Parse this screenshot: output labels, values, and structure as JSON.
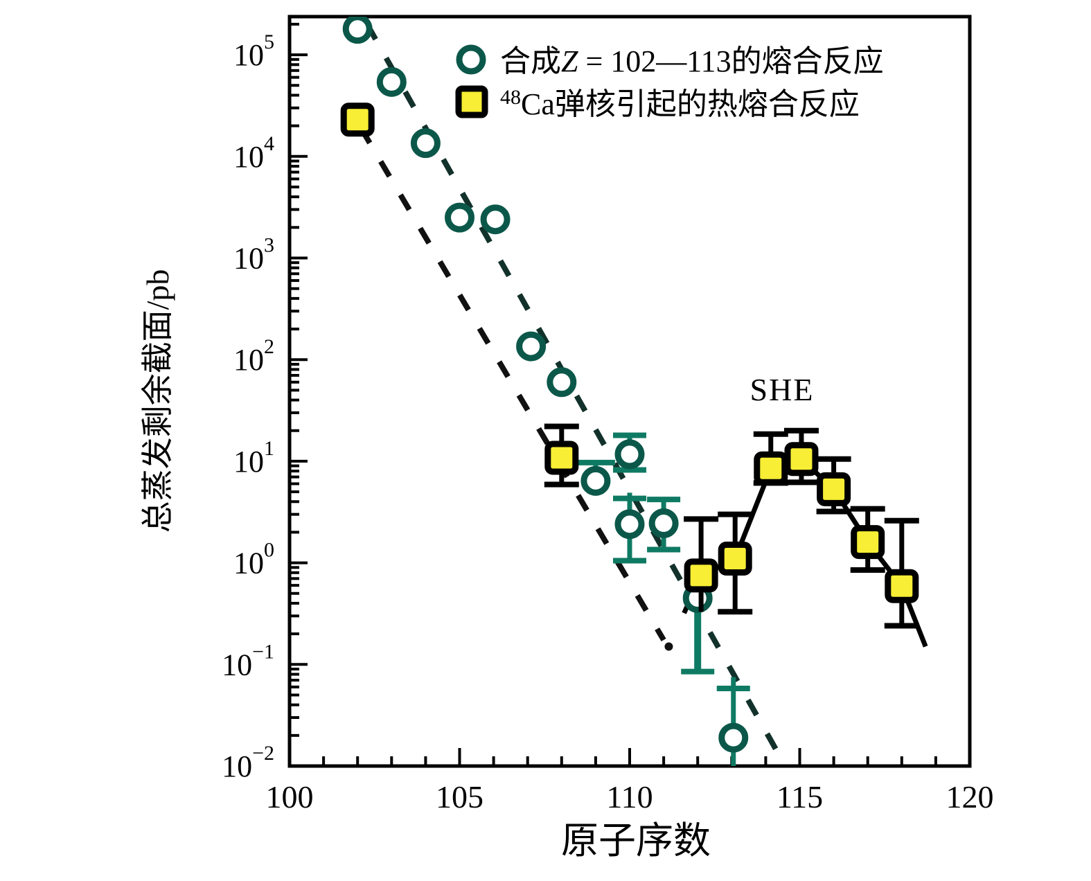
{
  "chart_data": {
    "type": "scatter",
    "xlabel": "原子序数",
    "ylabel": "总蒸发剩余截面/pb",
    "annotations": {
      "she": "SHE"
    },
    "x_axis": {
      "min": 100,
      "max": 120,
      "major_ticks": [
        100,
        105,
        110,
        115,
        120
      ],
      "tick_labels": [
        "100",
        "105",
        "110",
        "115",
        "120"
      ],
      "minor_step": 1
    },
    "y_axis": {
      "scale": "log",
      "min_exp": -2,
      "max_exp": 5.37,
      "tick_labels": [
        {
          "base": "10",
          "exp": "5"
        },
        {
          "base": "10",
          "exp": "4"
        },
        {
          "base": "10",
          "exp": "3"
        },
        {
          "base": "10",
          "exp": "2"
        },
        {
          "base": "10",
          "exp": "1"
        },
        {
          "base": "10",
          "exp": "0"
        },
        {
          "base": "10",
          "exp": "−1"
        },
        {
          "base": "10",
          "exp": "−2"
        }
      ]
    },
    "legend": [
      {
        "marker": "circle",
        "parts": [
          {
            "t": "合成"
          },
          {
            "t": "Z",
            "i": true
          },
          {
            "t": " = 102—113的熔合反应"
          }
        ],
        "label": "合成Z = 102—113的熔合反应"
      },
      {
        "marker": "square",
        "parts": [
          {
            "t": "48",
            "sup": true
          },
          {
            "t": "Ca弹核引起的热熔合反应"
          }
        ],
        "label": "48Ca弹核引起的热熔合反应"
      }
    ],
    "series": [
      {
        "name": "合成Z = 102—113的熔合反应",
        "marker": "circle",
        "points": [
          {
            "z": 102,
            "pb": 180000
          },
          {
            "z": 103,
            "pb": 54000
          },
          {
            "z": 104,
            "pb": 13500
          },
          {
            "z": 105,
            "pb": 2500
          },
          {
            "z": 106.05,
            "pb": 2400
          },
          {
            "z": 107.1,
            "pb": 135
          },
          {
            "z": 108,
            "pb": 60
          },
          {
            "z": 109,
            "pb": 6.4,
            "hi": 9.7,
            "cap_w": 56
          },
          {
            "z": 110,
            "pb": 11.7,
            "hi": 18,
            "lo": 8.2
          },
          {
            "z": 110,
            "pb": 2.4,
            "hi": 4.3,
            "lo": 1.05,
            "hi_stem": 4.9
          },
          {
            "z": 111,
            "pb": 2.45,
            "hi": 4.2,
            "lo": 1.35
          },
          {
            "z": 112,
            "pb": 0.45,
            "lo": 0.085,
            "hi_stem": 0.9,
            "stem_w": 10
          },
          {
            "z": 113.05,
            "pb": 0.019,
            "hi": 0.058,
            "hi_stem": 0.075,
            "lo_stem": 0.0095
          }
        ]
      },
      {
        "name": "48Ca弹核引起的热熔合反应",
        "marker": "square",
        "points": [
          {
            "z": 102,
            "pb": 23000
          },
          {
            "z": 108,
            "pb": 10.8,
            "hi": 22,
            "lo": 5.9
          },
          {
            "z": 112.1,
            "pb": 0.75,
            "hi": 2.7,
            "lo_stem": 0.33
          },
          {
            "z": 113.1,
            "pb": 1.1,
            "hi": 3.0,
            "lo": 0.33
          },
          {
            "z": 114.15,
            "pb": 8.5,
            "hi": 18.5,
            "lo": 6.1
          },
          {
            "z": 115.05,
            "pb": 10.5,
            "hi": 20,
            "lo": 6.2
          },
          {
            "z": 116,
            "pb": 5.3,
            "hi": 10.5,
            "lo": 3.2
          },
          {
            "z": 117,
            "pb": 1.6,
            "hi": 3.4,
            "lo": 0.85
          },
          {
            "z": 118,
            "pb": 0.59,
            "hi": 2.6,
            "lo": 0.24
          }
        ]
      }
    ],
    "she_line": [
      {
        "z": 111.6,
        "pb": 0.32
      },
      {
        "z": 112.1,
        "pb": 0.75
      },
      {
        "z": 113.1,
        "pb": 1.1
      },
      {
        "z": 114.15,
        "pb": 8.5
      },
      {
        "z": 115.05,
        "pb": 10.5
      },
      {
        "z": 116,
        "pb": 5.3
      },
      {
        "z": 117,
        "pb": 1.6
      },
      {
        "z": 118,
        "pb": 0.59
      },
      {
        "z": 118.7,
        "pb": 0.15
      }
    ],
    "guides": [
      {
        "name": "hot-fusion-trend",
        "from": {
          "z": 102.1,
          "pb": 19000
        },
        "to": {
          "z": 111.0,
          "pb": 0.174
        },
        "end_dot": {
          "z": 111.15,
          "pb": 0.15
        }
      },
      {
        "name": "cold-fusion-trend",
        "from": {
          "z": 102.28,
          "pb": 200000
        },
        "to": {
          "z": 114.3,
          "pb": 0.0146
        }
      }
    ],
    "colors": {
      "circle_ring": "#0b584a",
      "circle_bar": "#0f7a63",
      "square_fill": "#f7ee35",
      "square_border": "#000000",
      "guide_hot": "#111111",
      "guide_cold": "#12312b",
      "she_line": "#000000"
    }
  }
}
